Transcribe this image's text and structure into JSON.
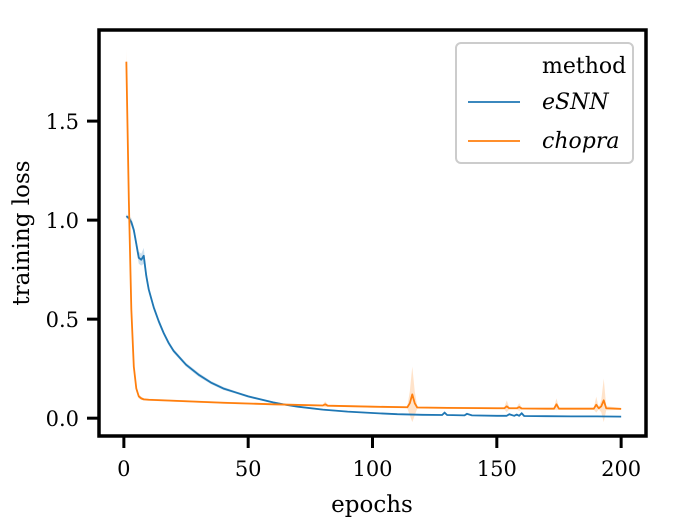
{
  "chart_data": {
    "type": "line",
    "title": "",
    "xlabel": "epochs",
    "ylabel": "training loss",
    "xlim": [
      -10,
      210
    ],
    "ylim": [
      -0.09,
      1.96
    ],
    "xticks": [
      0,
      50,
      100,
      150,
      200
    ],
    "xtick_labels": [
      "0",
      "50",
      "100",
      "150",
      "200"
    ],
    "yticks": [
      0.0,
      0.5,
      1.0,
      1.5
    ],
    "ytick_labels": [
      "0.0",
      "0.5",
      "1.0",
      "1.5"
    ],
    "grid": false,
    "legend": {
      "title": "method",
      "placement": "top-right",
      "entries": [
        "eSNN",
        "chopra"
      ]
    },
    "series": [
      {
        "name": "eSNN",
        "color": "#1f77b4",
        "x": [
          1,
          2,
          3,
          4,
          5,
          6,
          7,
          8,
          9,
          10,
          12,
          14,
          16,
          18,
          20,
          25,
          30,
          35,
          40,
          45,
          50,
          55,
          60,
          65,
          70,
          80,
          90,
          100,
          110,
          120,
          128,
          129,
          130,
          137,
          138,
          140,
          150,
          154,
          155,
          157,
          158,
          159,
          160,
          161,
          170,
          180,
          190,
          200
        ],
        "values": [
          1.02,
          1.01,
          0.99,
          0.95,
          0.88,
          0.81,
          0.8,
          0.82,
          0.72,
          0.65,
          0.56,
          0.49,
          0.43,
          0.38,
          0.34,
          0.27,
          0.22,
          0.18,
          0.15,
          0.13,
          0.11,
          0.095,
          0.08,
          0.068,
          0.058,
          0.043,
          0.033,
          0.026,
          0.02,
          0.017,
          0.016,
          0.028,
          0.016,
          0.014,
          0.022,
          0.014,
          0.012,
          0.012,
          0.02,
          0.012,
          0.018,
          0.012,
          0.025,
          0.011,
          0.01,
          0.009,
          0.009,
          0.008
        ],
        "band_width": [
          0.01,
          0.01,
          0.02,
          0.02,
          0.03,
          0.03,
          0.03,
          0.04,
          0.03,
          0.02,
          0.015,
          0.015,
          0.012,
          0.012,
          0.01,
          0.01,
          0.01,
          0.008,
          0.008,
          0.006,
          0.006,
          0.005,
          0.005,
          0.004,
          0.004,
          0.004,
          0.003,
          0.003,
          0.003,
          0.003,
          0.003,
          0.008,
          0.003,
          0.003,
          0.006,
          0.003,
          0.003,
          0.003,
          0.006,
          0.003,
          0.006,
          0.003,
          0.008,
          0.003,
          0.003,
          0.003,
          0.003,
          0.003
        ]
      },
      {
        "name": "chopra",
        "color": "#ff7f0e",
        "x": [
          1,
          2,
          3,
          4,
          5,
          6,
          7,
          8,
          10,
          20,
          40,
          60,
          80,
          81,
          82,
          100,
          114,
          115,
          116,
          117,
          118,
          130,
          150,
          153,
          154,
          155,
          158,
          159,
          160,
          170,
          173,
          174,
          175,
          180,
          189,
          190,
          191,
          192,
          193,
          194,
          200
        ],
        "values": [
          1.8,
          1.1,
          0.55,
          0.26,
          0.15,
          0.11,
          0.1,
          0.095,
          0.093,
          0.088,
          0.078,
          0.07,
          0.064,
          0.07,
          0.063,
          0.058,
          0.055,
          0.075,
          0.12,
          0.075,
          0.054,
          0.052,
          0.05,
          0.05,
          0.06,
          0.05,
          0.05,
          0.056,
          0.049,
          0.048,
          0.048,
          0.07,
          0.048,
          0.048,
          0.048,
          0.068,
          0.05,
          0.06,
          0.09,
          0.05,
          0.047
        ],
        "band_width": [
          0.06,
          0.04,
          0.03,
          0.02,
          0.015,
          0.01,
          0.008,
          0.006,
          0.005,
          0.005,
          0.005,
          0.005,
          0.005,
          0.015,
          0.005,
          0.005,
          0.005,
          0.06,
          0.14,
          0.06,
          0.005,
          0.005,
          0.005,
          0.005,
          0.03,
          0.005,
          0.005,
          0.02,
          0.005,
          0.005,
          0.005,
          0.03,
          0.005,
          0.005,
          0.005,
          0.04,
          0.005,
          0.03,
          0.11,
          0.01,
          0.005
        ]
      }
    ]
  }
}
